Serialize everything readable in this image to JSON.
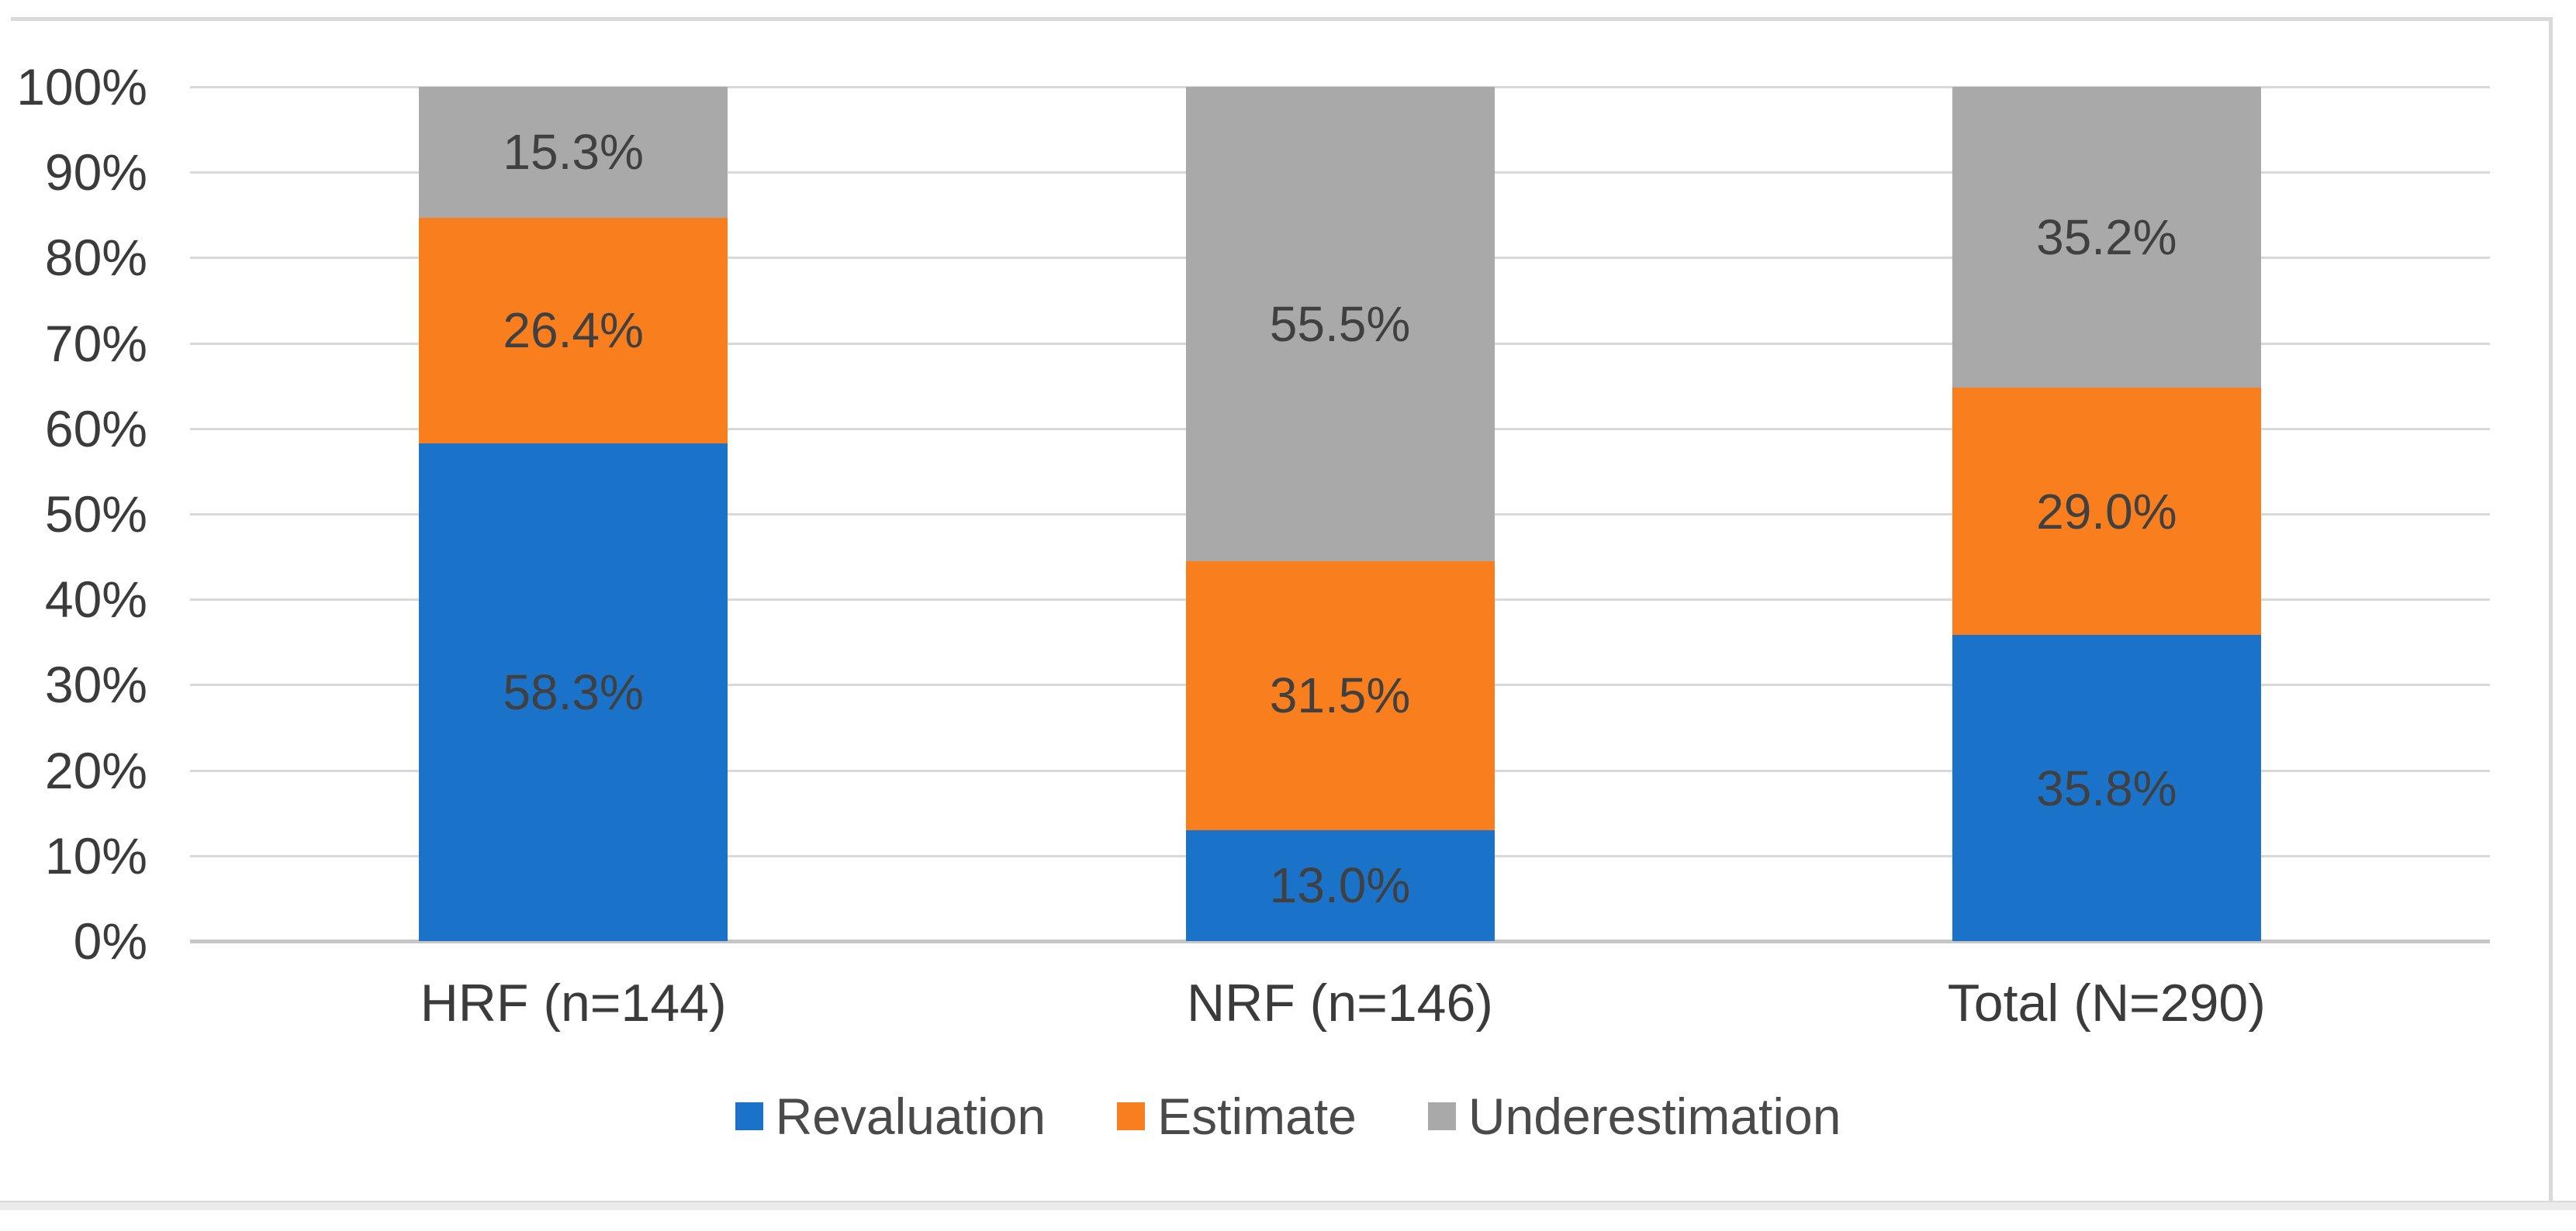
{
  "chart_data": {
    "type": "bar",
    "stacked": true,
    "orientation": "vertical",
    "title": "",
    "xlabel": "",
    "ylabel": "",
    "categories": [
      "HRF (n=144)",
      "NRF (n=146)",
      "Total (N=290)"
    ],
    "series": [
      {
        "name": "Revaluation",
        "color": "#1b73c9",
        "values": [
          58.3,
          13.0,
          35.8
        ],
        "display_labels": [
          "58.3%",
          "13.0%",
          "35.8%"
        ]
      },
      {
        "name": "Estimate",
        "color": "#f97e1e",
        "values": [
          26.4,
          31.5,
          29.0
        ],
        "display_labels": [
          "26.4%",
          "31.5%",
          "29.0%"
        ]
      },
      {
        "name": "Underestimation",
        "color": "#a9a9a9",
        "values": [
          15.3,
          55.5,
          35.2
        ],
        "display_labels": [
          "15.3%",
          "55.5%",
          "35.2%"
        ]
      }
    ],
    "y_axis": {
      "min": 0,
      "max": 100,
      "step": 10,
      "tick_labels": [
        "0%",
        "10%",
        "20%",
        "30%",
        "40%",
        "50%",
        "60%",
        "70%",
        "80%",
        "90%",
        "100%"
      ]
    },
    "grid": true,
    "gridline_color": "#d9d9d9",
    "data_label_color": "#404040",
    "legend_position": "bottom",
    "legend": [
      "Revaluation",
      "Estimate",
      "Underestimation"
    ]
  }
}
